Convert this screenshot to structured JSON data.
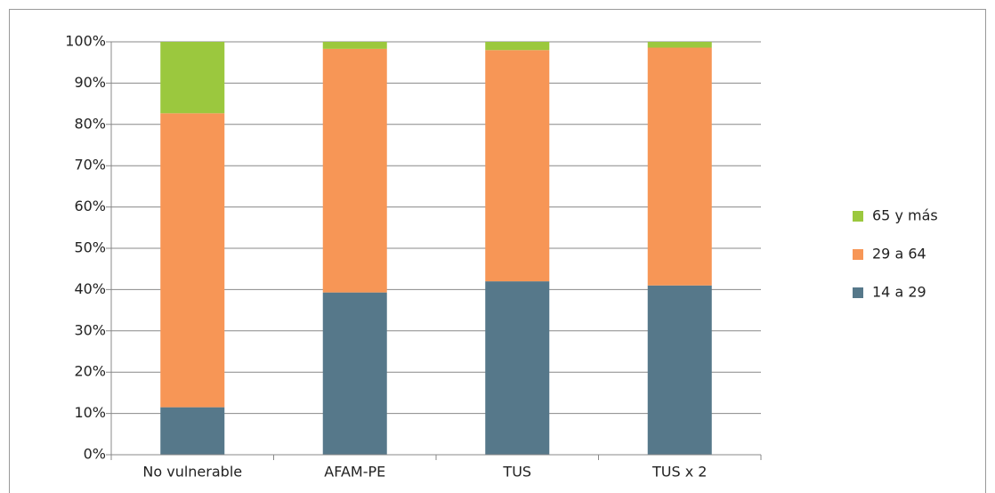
{
  "chart_data": {
    "type": "stacked_bar",
    "categories": [
      "No vulnerable",
      "AFAM-PE",
      "TUS",
      "TUS x 2"
    ],
    "series": [
      {
        "name": "14 a 29",
        "color": "#56788a",
        "values": [
          11.5,
          39.3,
          42,
          41
        ]
      },
      {
        "name": "29 a 64",
        "color": "#f79656",
        "values": [
          71.2,
          59,
          56,
          57.6
        ]
      },
      {
        "name": "65 y más",
        "color": "#9bc83e",
        "values": [
          17.3,
          1.7,
          2,
          1.4
        ]
      }
    ],
    "ylim": [
      0,
      100
    ],
    "yticks": [
      {
        "value": 0,
        "label": "0%"
      },
      {
        "value": 10,
        "label": "10%"
      },
      {
        "value": 20,
        "label": "20%"
      },
      {
        "value": 30,
        "label": "30%"
      },
      {
        "value": 40,
        "label": "40%"
      },
      {
        "value": 50,
        "label": "50%"
      },
      {
        "value": 60,
        "label": "60%"
      },
      {
        "value": 70,
        "label": "70%"
      },
      {
        "value": 80,
        "label": "80%"
      },
      {
        "value": 90,
        "label": "90%"
      },
      {
        "value": 100,
        "label": "100%"
      }
    ],
    "grid": true,
    "legend": "right"
  }
}
